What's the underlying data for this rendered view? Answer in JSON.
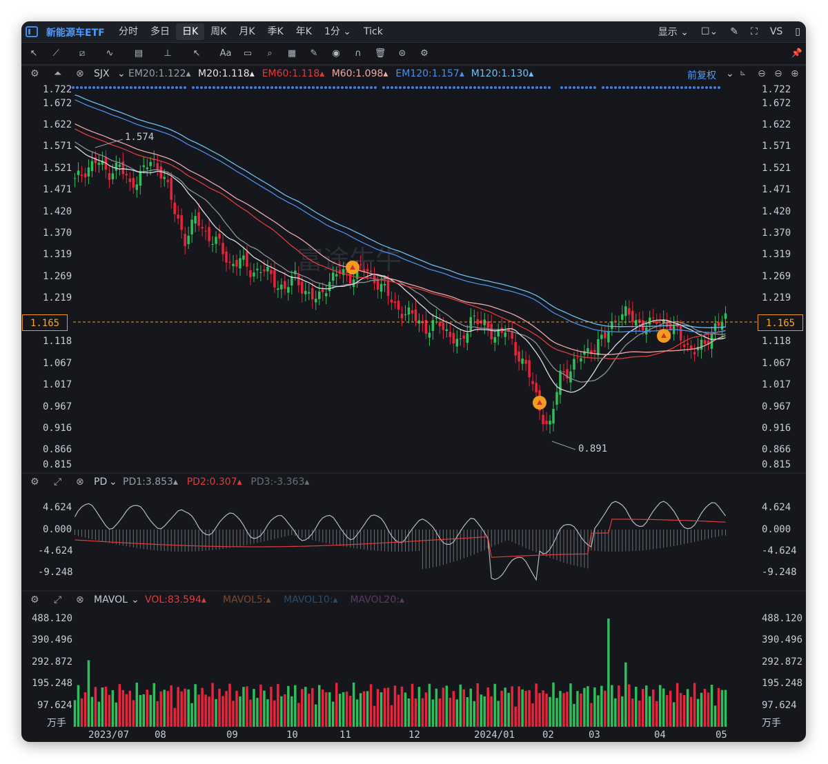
{
  "app": {
    "title": "新能源车ETF"
  },
  "tabs": [
    {
      "label": "分时"
    },
    {
      "label": "多日"
    },
    {
      "label": "日K",
      "active": true
    },
    {
      "label": "周K"
    },
    {
      "label": "月K"
    },
    {
      "label": "季K"
    },
    {
      "label": "年K"
    },
    {
      "label": "1分 ⌄"
    },
    {
      "label": "Tick"
    }
  ],
  "header_right": {
    "display": "显示 ⌄",
    "vs": "VS"
  },
  "main_panel": {
    "indicator": "SJX",
    "legend": [
      {
        "text": "EM20:1.122",
        "color": "#9a9da4"
      },
      {
        "text": "M20:1.118",
        "color": "#e4e6ea"
      },
      {
        "text": "EM60:1.118",
        "color": "#e23b3b"
      },
      {
        "text": "M60:1.098",
        "color": "#f0a8a8"
      },
      {
        "text": "EM120:1.157",
        "color": "#4a8fe8"
      },
      {
        "text": "M120:1.130",
        "color": "#6ec0f0"
      }
    ],
    "adjust": "前复权",
    "y_ticks": [
      "1.722",
      "1.672",
      "1.622",
      "1.571",
      "1.521",
      "1.471",
      "1.420",
      "1.370",
      "1.319",
      "1.269",
      "1.219",
      "1.118",
      "1.067",
      "1.017",
      "0.967",
      "0.916",
      "0.866",
      "0.815"
    ],
    "current_price": "1.165",
    "high_label": "1.574",
    "low_label": "0.891"
  },
  "pd_panel": {
    "indicator": "PD",
    "legend": [
      {
        "text": "PD1:3.853",
        "color": "#9a9da4"
      },
      {
        "text": "PD2:0.307",
        "color": "#e23b3b"
      },
      {
        "text": "PD3:-3.363",
        "color": "#6b6e75"
      }
    ],
    "y_ticks": [
      "4.624",
      "0.000",
      "-4.624",
      "-9.248"
    ]
  },
  "vol_panel": {
    "indicator": "MAVOL",
    "legend": [
      {
        "text": "VOL:83.594",
        "color": "#e23b3b"
      },
      {
        "text": "MAVOL5:",
        "color": "#7a4a2e"
      },
      {
        "text": "MAVOL10:",
        "color": "#2e4a6a"
      },
      {
        "text": "MAVOL20:",
        "color": "#5a3a62"
      }
    ],
    "y_ticks": [
      "488.120",
      "390.496",
      "292.872",
      "195.248",
      "97.624"
    ],
    "unit": "万手"
  },
  "x_labels": [
    "2023/07",
    "08",
    "09",
    "10",
    "11",
    "12",
    "2024/01",
    "02",
    "03",
    "04",
    "05"
  ],
  "colors": {
    "up": "#2fbf5a",
    "down": "#e8243c",
    "accent": "#f39b1f"
  },
  "chart_data": {
    "type": "candlestick",
    "price_range": [
      0.815,
      1.722
    ],
    "key_points": {
      "high": 1.574,
      "low": 0.891,
      "last": 1.165
    },
    "ma_endpoints": {
      "EM20": 1.122,
      "M20": 1.118,
      "EM60": 1.118,
      "M60": 1.098,
      "EM120": 1.157,
      "M120": 1.13
    },
    "close_series": [
      1.5,
      1.53,
      1.55,
      1.52,
      1.54,
      1.49,
      1.52,
      1.55,
      1.52,
      1.43,
      1.36,
      1.41,
      1.37,
      1.35,
      1.3,
      1.31,
      1.28,
      1.29,
      1.26,
      1.24,
      1.27,
      1.23,
      1.21,
      1.26,
      1.28,
      1.27,
      1.29,
      1.27,
      1.24,
      1.2,
      1.18,
      1.17,
      1.14,
      1.16,
      1.13,
      1.1,
      1.18,
      1.15,
      1.13,
      1.14,
      1.09,
      1.05,
      0.96,
      0.9,
      1.03,
      1.05,
      1.08,
      1.1,
      1.12,
      1.17,
      1.18,
      1.16,
      1.15,
      1.17,
      1.15,
      1.12,
      1.09,
      1.1,
      1.15,
      1.165
    ],
    "volume_range": [
      0,
      488.12
    ]
  }
}
